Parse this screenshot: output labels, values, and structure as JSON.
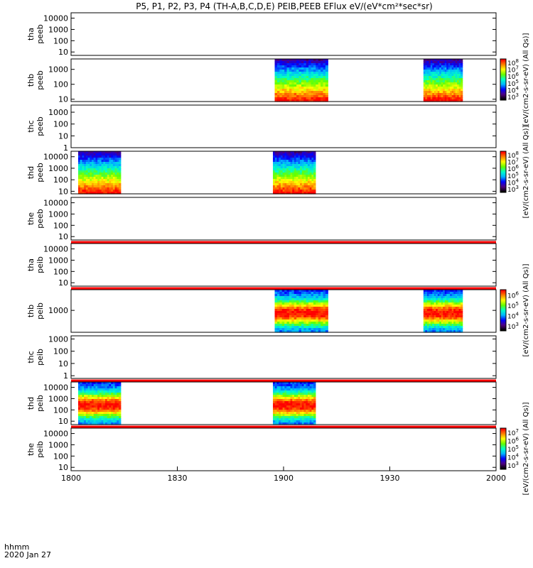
{
  "chart_data": {
    "type": "heatmap",
    "title": "P5, P1, P2, P3, P4 (TH-A,B,C,D,E) PEIB,PEEB EFlux eV/(eV*cm²*sec*sr)",
    "x_axis": {
      "label_line1": "hhmm",
      "label_line2": "2020 Jan 27",
      "range": [
        "18:00",
        "20:00"
      ],
      "range_minutes": [
        0,
        120
      ],
      "ticks": [
        {
          "minute": 0,
          "label": "1800"
        },
        {
          "minute": 30,
          "label": "1830"
        },
        {
          "minute": 60,
          "label": "1900"
        },
        {
          "minute": 90,
          "label": "1930"
        },
        {
          "minute": 120,
          "label": "2000"
        }
      ]
    },
    "panels": [
      {
        "id": "tha_peeb",
        "probe": "tha",
        "instrument": "peeb",
        "label1": "tha",
        "label2": "peeb",
        "ylim": [
          5,
          30000
        ],
        "yticks": [
          "10",
          "100",
          "1000",
          "10000"
        ],
        "blocks": [],
        "redbar_below": false,
        "colorbar": null
      },
      {
        "id": "thb_peeb",
        "probe": "thb",
        "instrument": "peeb",
        "label1": "thb",
        "label2": "peeb",
        "ylim": [
          7,
          5000
        ],
        "yticks": [
          "10",
          "100",
          "1000"
        ],
        "blocks": [
          [
            57.5,
            72.5
          ],
          [
            99.5,
            110.5
          ]
        ],
        "redbar_below": false,
        "colorbar": 0
      },
      {
        "id": "thc_peeb",
        "probe": "thc",
        "instrument": "peeb",
        "label1": "thc",
        "label2": "peeb",
        "ylim": [
          1,
          4000
        ],
        "yticks": [
          "1",
          "10",
          "100",
          "1000"
        ],
        "blocks": [],
        "redbar_below": false,
        "colorbar": null
      },
      {
        "id": "thd_peeb",
        "probe": "thd",
        "instrument": "peeb",
        "label1": "thd",
        "label2": "peeb",
        "ylim": [
          6,
          30000
        ],
        "yticks": [
          "10",
          "100",
          "1000",
          "10000"
        ],
        "blocks": [
          [
            2,
            14
          ],
          [
            57,
            69
          ]
        ],
        "redbar_below": false,
        "colorbar": 1
      },
      {
        "id": "the_peeb",
        "probe": "the",
        "instrument": "peeb",
        "label1": "the",
        "label2": "peeb",
        "ylim": [
          5,
          30000
        ],
        "yticks": [
          "10",
          "100",
          "1000",
          "10000"
        ],
        "blocks": [],
        "redbar_below": true,
        "colorbar": null
      },
      {
        "id": "tha_peib",
        "probe": "tha",
        "instrument": "peib",
        "label1": "tha",
        "label2": "peib",
        "ylim": [
          5,
          30000
        ],
        "yticks": [
          "10",
          "100",
          "1000",
          "10000"
        ],
        "blocks": [],
        "redbar_below": true,
        "colorbar": null
      },
      {
        "id": "thb_peib",
        "probe": "thb",
        "instrument": "peib",
        "label1": "thb",
        "label2": "peib",
        "ylim": [
          150,
          6000
        ],
        "yticks": [
          "1000"
        ],
        "blocks": [
          [
            57.5,
            72.5
          ],
          [
            99.5,
            110.5
          ]
        ],
        "redbar_below": false,
        "colorbar": 2
      },
      {
        "id": "thc_peib",
        "probe": "thc",
        "instrument": "peib",
        "label1": "thc",
        "label2": "peib",
        "ylim": [
          0.6,
          1800
        ],
        "yticks": [
          "1",
          "10",
          "100",
          "1000"
        ],
        "blocks": [],
        "redbar_below": true,
        "colorbar": null
      },
      {
        "id": "thd_peib",
        "probe": "thd",
        "instrument": "peib",
        "label1": "thd",
        "label2": "peib",
        "ylim": [
          5,
          30000
        ],
        "yticks": [
          "10",
          "100",
          "1000",
          "10000"
        ],
        "blocks": [
          [
            2,
            14
          ],
          [
            57,
            69
          ]
        ],
        "redbar_below": true,
        "colorbar": 3
      },
      {
        "id": "the_peib",
        "probe": "the",
        "instrument": "peib",
        "label1": "the",
        "label2": "peib",
        "ylim": [
          5,
          30000
        ],
        "yticks": [
          "10",
          "100",
          "1000",
          "10000"
        ],
        "blocks": [],
        "redbar_below": false,
        "colorbar": null
      }
    ],
    "colorbars": [
      {
        "label": "[eV/(cm2-s-sr-eV) (All Qs)]",
        "ticks": [
          "10",
          "10",
          "10",
          "10",
          "10",
          "10"
        ],
        "exponents": [
          "3",
          "4",
          "5",
          "6",
          "7",
          "8"
        ]
      },
      {
        "label": "[eV/(cm2-s-sr-eV) (All Qs)]",
        "ticks": [
          "10",
          "10",
          "10",
          "10",
          "10",
          "10"
        ],
        "exponents": [
          "3",
          "4",
          "5",
          "6",
          "7",
          "8"
        ]
      },
      {
        "label": "[eV/(cm2-s-sr-eV) (All Qs)]",
        "ticks": [
          "10",
          "10",
          "10",
          "10"
        ],
        "exponents": [
          "3",
          "4",
          "5",
          "6"
        ]
      },
      {
        "label": "[eV/(cm2-s-sr-eV) (All Qs)]",
        "ticks": [
          "10",
          "10",
          "10",
          "10",
          "10"
        ],
        "exponents": [
          "3",
          "4",
          "5",
          "6",
          "7"
        ]
      }
    ]
  }
}
